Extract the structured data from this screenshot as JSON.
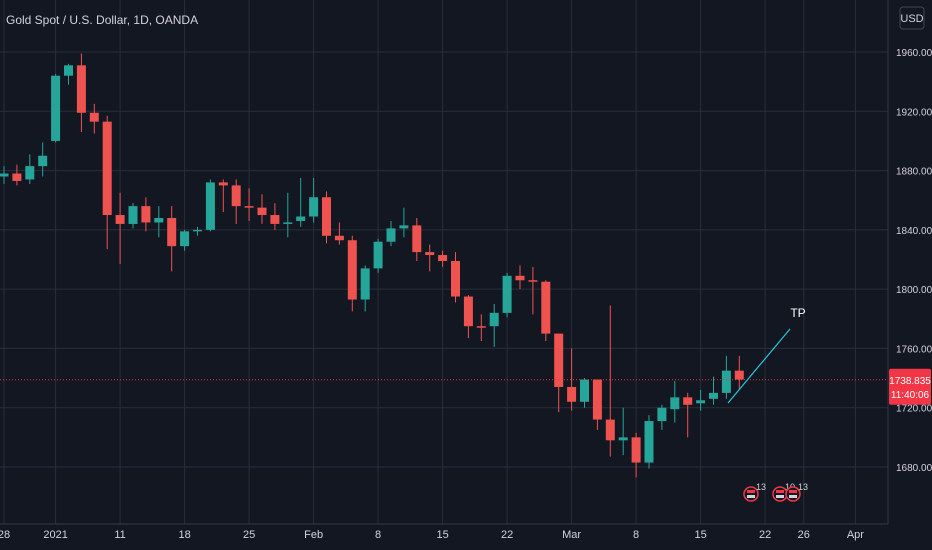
{
  "header": {
    "symbol_title": "Gold Spot / U.S. Dollar, 1D, OANDA",
    "currency": "USD"
  },
  "price_badge": {
    "price": "1738.835",
    "countdown": "11:40:06",
    "color": "#f23645"
  },
  "annotation": {
    "label": "TP"
  },
  "events": [
    {
      "count": "13"
    },
    {
      "count": "10"
    },
    {
      "count": "13"
    }
  ],
  "colors": {
    "background": "#131722",
    "grid": "#2a2e39",
    "up": "#26a69a",
    "down": "#ef5350",
    "text": "#d1d4dc",
    "line": "#26c6da"
  },
  "chart_data": {
    "type": "candlestick",
    "y_axis": {
      "ticks": [
        1680,
        1720,
        1760,
        1800,
        1840,
        1880,
        1920,
        1960
      ],
      "tick_labels": [
        "1680.000",
        "1720.000",
        "1760.000",
        "1800.000",
        "1840.000",
        "1880.000",
        "1920.000",
        "1960.000"
      ],
      "range": [
        1654,
        1980
      ]
    },
    "x_axis": {
      "tick_labels": [
        "28",
        "2021",
        "11",
        "18",
        "25",
        "Feb",
        "8",
        "15",
        "22",
        "Mar",
        "8",
        "15",
        "22",
        "26",
        "Apr"
      ]
    },
    "grid": true,
    "current_price": 1738.835,
    "candles": [
      {
        "date": "Dec 28",
        "o": 1876,
        "h": 1883,
        "l": 1871,
        "c": 1878
      },
      {
        "date": "Dec 29",
        "o": 1878,
        "h": 1884,
        "l": 1870,
        "c": 1873
      },
      {
        "date": "Dec 30",
        "o": 1874,
        "h": 1891,
        "l": 1871,
        "c": 1883
      },
      {
        "date": "Dec 31",
        "o": 1883,
        "h": 1899,
        "l": 1876,
        "c": 1890
      },
      {
        "date": "Jan 4",
        "o": 1900,
        "h": 1945,
        "l": 1899,
        "c": 1944
      },
      {
        "date": "Jan 5",
        "o": 1944,
        "h": 1952,
        "l": 1938,
        "c": 1951
      },
      {
        "date": "Jan 6",
        "o": 1951,
        "h": 1959,
        "l": 1906,
        "c": 1919
      },
      {
        "date": "Jan 7",
        "o": 1919,
        "h": 1925,
        "l": 1905,
        "c": 1913
      },
      {
        "date": "Jan 8",
        "o": 1913,
        "h": 1917,
        "l": 1827,
        "c": 1850
      },
      {
        "date": "Jan 11",
        "o": 1850,
        "h": 1865,
        "l": 1817,
        "c": 1844
      },
      {
        "date": "Jan 12",
        "o": 1844,
        "h": 1858,
        "l": 1841,
        "c": 1856
      },
      {
        "date": "Jan 13",
        "o": 1856,
        "h": 1862,
        "l": 1839,
        "c": 1845
      },
      {
        "date": "Jan 14",
        "o": 1845,
        "h": 1856,
        "l": 1835,
        "c": 1848
      },
      {
        "date": "Jan 15",
        "o": 1848,
        "h": 1856,
        "l": 1812,
        "c": 1829
      },
      {
        "date": "Jan 18",
        "o": 1829,
        "h": 1840,
        "l": 1826,
        "c": 1839
      },
      {
        "date": "Jan 19",
        "o": 1839,
        "h": 1842,
        "l": 1836,
        "c": 1840
      },
      {
        "date": "Jan 20",
        "o": 1840,
        "h": 1874,
        "l": 1839,
        "c": 1872
      },
      {
        "date": "Jan 21",
        "o": 1872,
        "h": 1874,
        "l": 1852,
        "c": 1870
      },
      {
        "date": "Jan 22",
        "o": 1870,
        "h": 1874,
        "l": 1844,
        "c": 1856
      },
      {
        "date": "Jan 25",
        "o": 1856,
        "h": 1868,
        "l": 1846,
        "c": 1855
      },
      {
        "date": "Jan 26",
        "o": 1855,
        "h": 1864,
        "l": 1844,
        "c": 1850
      },
      {
        "date": "Jan 27",
        "o": 1850,
        "h": 1858,
        "l": 1840,
        "c": 1844
      },
      {
        "date": "Jan 28",
        "o": 1844,
        "h": 1865,
        "l": 1835,
        "c": 1845
      },
      {
        "date": "Jan 29",
        "o": 1846,
        "h": 1875,
        "l": 1842,
        "c": 1849
      },
      {
        "date": "Feb 1",
        "o": 1849,
        "h": 1875,
        "l": 1845,
        "c": 1862
      },
      {
        "date": "Feb 2",
        "o": 1862,
        "h": 1866,
        "l": 1831,
        "c": 1836
      },
      {
        "date": "Feb 3",
        "o": 1836,
        "h": 1845,
        "l": 1830,
        "c": 1833
      },
      {
        "date": "Feb 4",
        "o": 1833,
        "h": 1836,
        "l": 1785,
        "c": 1793
      },
      {
        "date": "Feb 5",
        "o": 1793,
        "h": 1816,
        "l": 1785,
        "c": 1814
      },
      {
        "date": "Feb 8",
        "o": 1814,
        "h": 1834,
        "l": 1811,
        "c": 1832
      },
      {
        "date": "Feb 9",
        "o": 1832,
        "h": 1846,
        "l": 1829,
        "c": 1841
      },
      {
        "date": "Feb 10",
        "o": 1841,
        "h": 1855,
        "l": 1835,
        "c": 1843
      },
      {
        "date": "Feb 11",
        "o": 1843,
        "h": 1848,
        "l": 1819,
        "c": 1825
      },
      {
        "date": "Feb 12",
        "o": 1825,
        "h": 1830,
        "l": 1812,
        "c": 1823
      },
      {
        "date": "Feb 15",
        "o": 1823,
        "h": 1826,
        "l": 1815,
        "c": 1819
      },
      {
        "date": "Feb 16",
        "o": 1819,
        "h": 1825,
        "l": 1791,
        "c": 1795
      },
      {
        "date": "Feb 17",
        "o": 1795,
        "h": 1796,
        "l": 1767,
        "c": 1775
      },
      {
        "date": "Feb 18",
        "o": 1775,
        "h": 1783,
        "l": 1765,
        "c": 1774
      },
      {
        "date": "Feb 19",
        "o": 1775,
        "h": 1790,
        "l": 1761,
        "c": 1784
      },
      {
        "date": "Feb 22",
        "o": 1784,
        "h": 1811,
        "l": 1781,
        "c": 1809
      },
      {
        "date": "Feb 23",
        "o": 1809,
        "h": 1816,
        "l": 1800,
        "c": 1806
      },
      {
        "date": "Feb 24",
        "o": 1806,
        "h": 1815,
        "l": 1783,
        "c": 1805
      },
      {
        "date": "Feb 25",
        "o": 1805,
        "h": 1806,
        "l": 1765,
        "c": 1770
      },
      {
        "date": "Feb 26",
        "o": 1770,
        "h": 1770,
        "l": 1717,
        "c": 1734
      },
      {
        "date": "Mar 1",
        "o": 1734,
        "h": 1760,
        "l": 1718,
        "c": 1724
      },
      {
        "date": "Mar 2",
        "o": 1724,
        "h": 1740,
        "l": 1720,
        "c": 1739
      },
      {
        "date": "Mar 3",
        "o": 1739,
        "h": 1739,
        "l": 1705,
        "c": 1712
      },
      {
        "date": "Mar 4",
        "o": 1712,
        "h": 1789,
        "l": 1687,
        "c": 1698
      },
      {
        "date": "Mar 5",
        "o": 1698,
        "h": 1720,
        "l": 1688,
        "c": 1700
      },
      {
        "date": "Mar 8",
        "o": 1700,
        "h": 1703,
        "l": 1673,
        "c": 1683
      },
      {
        "date": "Mar 9",
        "o": 1683,
        "h": 1715,
        "l": 1679,
        "c": 1711
      },
      {
        "date": "Mar 10",
        "o": 1711,
        "h": 1722,
        "l": 1705,
        "c": 1720
      },
      {
        "date": "Mar 11",
        "o": 1719,
        "h": 1738,
        "l": 1710,
        "c": 1727
      },
      {
        "date": "Mar 12",
        "o": 1727,
        "h": 1730,
        "l": 1700,
        "c": 1722
      },
      {
        "date": "Mar 15",
        "o": 1723,
        "h": 1732,
        "l": 1718,
        "c": 1725
      },
      {
        "date": "Mar 16",
        "o": 1726,
        "h": 1741,
        "l": 1722,
        "c": 1730
      },
      {
        "date": "Mar 17",
        "o": 1730,
        "h": 1755,
        "l": 1726,
        "c": 1745
      },
      {
        "date": "Mar 18",
        "o": 1745,
        "h": 1755,
        "l": 1732,
        "c": 1739
      }
    ]
  }
}
